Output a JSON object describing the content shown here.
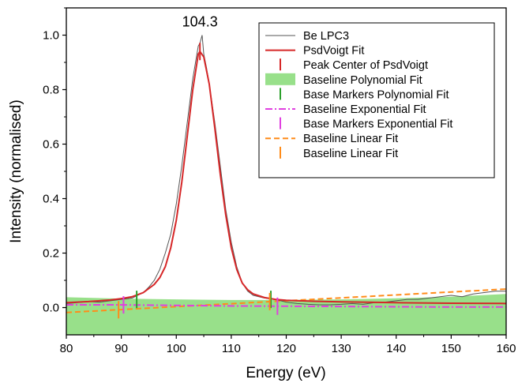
{
  "chart_data": {
    "type": "line",
    "title": "",
    "xlabel": "Energy (eV)",
    "ylabel": "Intensity (normalised)",
    "xlim": [
      80,
      160
    ],
    "ylim": [
      -0.1,
      1.1
    ],
    "x_ticks": [
      80,
      90,
      100,
      110,
      120,
      130,
      140,
      150,
      160
    ],
    "y_ticks": [
      0.0,
      0.2,
      0.4,
      0.6,
      0.8,
      1.0
    ],
    "x_tick_labels": [
      "80",
      "90",
      "100",
      "110",
      "120",
      "130",
      "140",
      "150",
      "160"
    ],
    "y_tick_labels": [
      "0.0",
      "0.2",
      "0.4",
      "0.6",
      "0.8",
      "1.0"
    ],
    "grid": false,
    "legend_position": "top-right",
    "annotations": [
      {
        "text": "104.3",
        "x": 104.3,
        "y": 1.02
      }
    ],
    "series": [
      {
        "name": "Be LPC3",
        "style": "line",
        "color": "#555555",
        "x": [
          80,
          82,
          84,
          86,
          88,
          90,
          92,
          94,
          95,
          96,
          97,
          98,
          99,
          100,
          101,
          102,
          103,
          103.5,
          104,
          104.3,
          104.7,
          105,
          105.5,
          106,
          107,
          108,
          109,
          110,
          111,
          112,
          113,
          114,
          116,
          118,
          120,
          122,
          124,
          126,
          128,
          130,
          132,
          134,
          136,
          138,
          140,
          142,
          144,
          146,
          148,
          150,
          152,
          154,
          156,
          158,
          160
        ],
        "y": [
          0.015,
          0.018,
          0.022,
          0.02,
          0.025,
          0.03,
          0.035,
          0.055,
          0.075,
          0.1,
          0.14,
          0.2,
          0.27,
          0.38,
          0.52,
          0.68,
          0.84,
          0.9,
          0.96,
          0.97,
          1.0,
          0.93,
          0.88,
          0.82,
          0.68,
          0.52,
          0.36,
          0.24,
          0.15,
          0.09,
          0.06,
          0.045,
          0.035,
          0.03,
          0.02,
          0.015,
          0.012,
          0.01,
          0.01,
          0.012,
          0.015,
          0.012,
          0.018,
          0.02,
          0.025,
          0.03,
          0.03,
          0.035,
          0.04,
          0.045,
          0.04,
          0.05,
          0.055,
          0.06,
          0.06
        ]
      },
      {
        "name": "PsdVoigt Fit",
        "style": "line",
        "color": "#d62728",
        "x": [
          80,
          84,
          88,
          90,
          92,
          94,
          96,
          97,
          98,
          99,
          100,
          101,
          102,
          103,
          104,
          104.3,
          105,
          106,
          107,
          108,
          109,
          110,
          111,
          112,
          113,
          114,
          116,
          118,
          120,
          125,
          130,
          140,
          150,
          160
        ],
        "y": [
          0.018,
          0.022,
          0.028,
          0.033,
          0.04,
          0.055,
          0.085,
          0.11,
          0.15,
          0.22,
          0.32,
          0.46,
          0.63,
          0.8,
          0.93,
          0.94,
          0.92,
          0.82,
          0.66,
          0.49,
          0.34,
          0.22,
          0.14,
          0.09,
          0.065,
          0.05,
          0.037,
          0.03,
          0.027,
          0.023,
          0.021,
          0.018,
          0.016,
          0.015
        ]
      },
      {
        "name": "Peak Center of PsdVoigt",
        "style": "marker",
        "color": "#d62728",
        "x": [
          104.3
        ],
        "y": [
          0.94
        ]
      },
      {
        "name": "Baseline Polynomial Fit",
        "style": "area",
        "color": "#98e08a",
        "x": [
          80,
          90,
          100,
          110,
          120,
          130,
          140,
          150,
          160
        ],
        "y": [
          0.038,
          0.033,
          0.03,
          0.028,
          0.028,
          0.03,
          0.034,
          0.04,
          0.05
        ]
      },
      {
        "name": "Base Markers Polynomial Fit",
        "style": "marker",
        "color": "#2ca02c",
        "x": [
          92.8,
          117.2
        ],
        "y": [
          0.03,
          0.03
        ]
      },
      {
        "name": "Baseline Exponential Fit",
        "style": "dashdot",
        "color": "#e040e0",
        "x": [
          80,
          90,
          100,
          110,
          120,
          130,
          140,
          150,
          160
        ],
        "y": [
          0.01,
          0.01,
          0.008,
          0.006,
          0.005,
          0.004,
          0.003,
          0.002,
          0.002
        ]
      },
      {
        "name": "Base Markers Exponential Fit",
        "style": "marker",
        "color": "#e040e0",
        "x": [
          90.4,
          118.4
        ],
        "y": [
          0.01,
          0.005
        ]
      },
      {
        "name": "Baseline Linear Fit",
        "style": "dashed",
        "color": "#ff8c1a",
        "x": [
          80,
          160
        ],
        "y": [
          -0.018,
          0.068
        ]
      },
      {
        "name": "Baseline Linear Fit",
        "style": "marker",
        "color": "#ff8c1a",
        "x": [
          89.5,
          117
        ],
        "y": [
          -0.008,
          0.022
        ]
      }
    ]
  }
}
